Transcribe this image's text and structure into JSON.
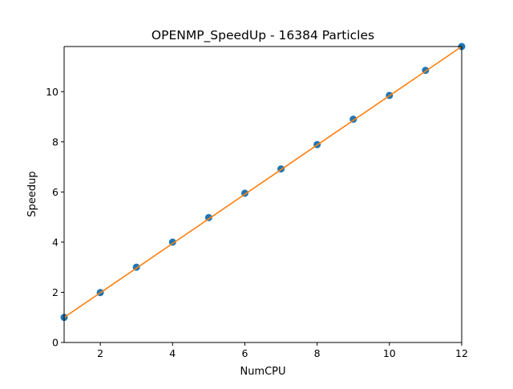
{
  "chart_data": {
    "type": "scatter",
    "title": "OPENMP_SpeedUp - 16384 Particles",
    "xlabel": "NumCPU",
    "ylabel": "Speedup",
    "xlim": [
      1,
      12
    ],
    "ylim": [
      0,
      11.8
    ],
    "xticks": [
      2,
      4,
      6,
      8,
      10,
      12
    ],
    "yticks": [
      0,
      2,
      4,
      6,
      8,
      10
    ],
    "grid": false,
    "legend": "none",
    "series": [
      {
        "kind": "scatter",
        "color": "#1f77b4",
        "x": [
          1,
          2,
          3,
          4,
          5,
          6,
          7,
          8,
          9,
          10,
          11,
          12
        ],
        "y": [
          1.0,
          1.99,
          3.0,
          4.0,
          4.98,
          5.95,
          6.92,
          7.89,
          8.9,
          9.85,
          10.85,
          11.8
        ]
      },
      {
        "kind": "line",
        "color": "#ff7f0e",
        "x": [
          1,
          12
        ],
        "y": [
          1.0,
          11.8
        ]
      }
    ]
  }
}
